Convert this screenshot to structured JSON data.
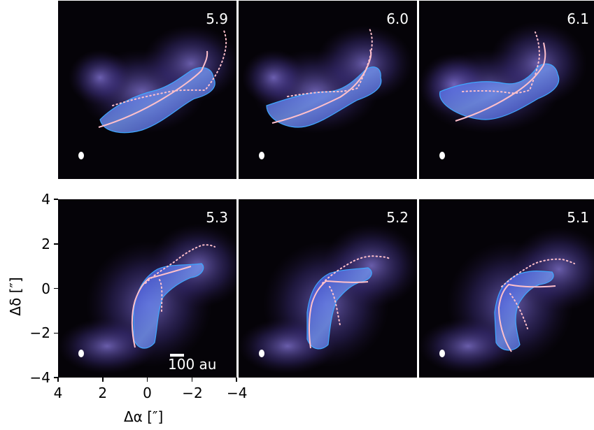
{
  "chart_data": {
    "type": "image_grid",
    "panels": [
      {
        "label": "5.9"
      },
      {
        "label": "6.0"
      },
      {
        "label": "6.1"
      },
      {
        "label": "5.3"
      },
      {
        "label": "5.2"
      },
      {
        "label": "5.1"
      }
    ],
    "axes": {
      "xlabel": "Δα [″]",
      "ylabel": "Δδ [″]",
      "xticks": [
        4,
        2,
        0,
        -2,
        -4
      ],
      "xtick_labels": [
        "4",
        "2",
        "0",
        "−2",
        "−4"
      ],
      "yticks": [
        4,
        2,
        0,
        -2,
        -4
      ],
      "ytick_labels": [
        "4",
        "2",
        "0",
        "−2",
        "−4"
      ],
      "xlim": [
        4,
        -4
      ],
      "ylim": [
        -4,
        4
      ]
    },
    "scalebar_label": "100 au",
    "colors": {
      "background": "#050308",
      "emission": "#6a5acd",
      "contour": "#3ea8ff",
      "curve": "#ffc0cb"
    }
  }
}
